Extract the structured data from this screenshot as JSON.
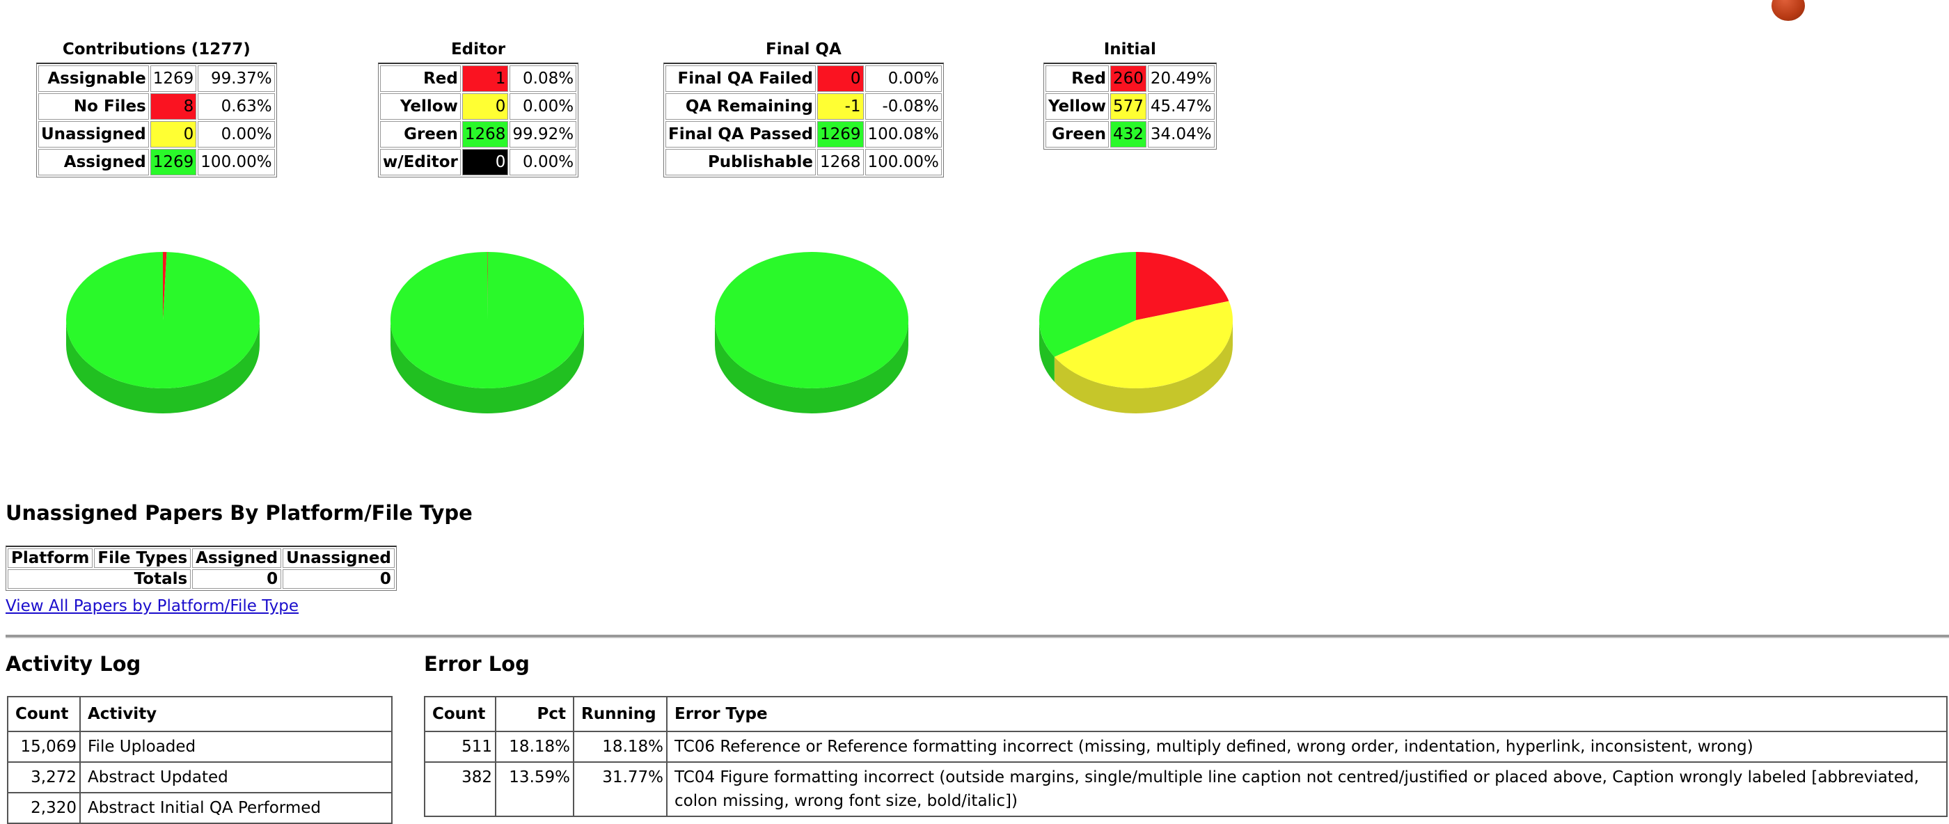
{
  "colors": {
    "red": "#fa1321",
    "yellow": "#ffff33",
    "green": "#2af92a",
    "black": "#000000"
  },
  "contributions": {
    "title": "Contributions (1277)",
    "rows": [
      {
        "label": "Assignable",
        "value": "1269",
        "pct": "99.37%",
        "color": ""
      },
      {
        "label": "No Files",
        "value": "8",
        "pct": "0.63%",
        "color": "red"
      },
      {
        "label": "Unassigned",
        "value": "0",
        "pct": "0.00%",
        "color": "yellow"
      },
      {
        "label": "Assigned",
        "value": "1269",
        "pct": "100.00%",
        "color": "green"
      }
    ]
  },
  "editor": {
    "title": "Editor",
    "rows": [
      {
        "label": "Red",
        "value": "1",
        "pct": "0.08%",
        "color": "red"
      },
      {
        "label": "Yellow",
        "value": "0",
        "pct": "0.00%",
        "color": "yellow"
      },
      {
        "label": "Green",
        "value": "1268",
        "pct": "99.92%",
        "color": "green"
      },
      {
        "label": "w/Editor",
        "value": "0",
        "pct": "0.00%",
        "color": "black"
      }
    ]
  },
  "final_qa": {
    "title": "Final QA",
    "rows": [
      {
        "label": "Final QA Failed",
        "value": "0",
        "pct": "0.00%",
        "color": "red"
      },
      {
        "label": "QA Remaining",
        "value": "-1",
        "pct": "-0.08%",
        "color": "yellow"
      },
      {
        "label": "Final QA Passed",
        "value": "1269",
        "pct": "100.08%",
        "color": "green"
      },
      {
        "label": "Publishable",
        "value": "1268",
        "pct": "100.00%",
        "color": ""
      }
    ]
  },
  "initial": {
    "title": "Initial",
    "rows": [
      {
        "label": "Red",
        "value": "260",
        "pct": "20.49%",
        "color": "red"
      },
      {
        "label": "Yellow",
        "value": "577",
        "pct": "45.47%",
        "color": "yellow"
      },
      {
        "label": "Green",
        "value": "432",
        "pct": "34.04%",
        "color": "green"
      }
    ]
  },
  "chart_data": [
    {
      "type": "pie",
      "name": "Contributions",
      "slices": [
        {
          "label": "No Files",
          "value": 8,
          "color": "red"
        },
        {
          "label": "Assigned",
          "value": 1269,
          "color": "green"
        }
      ]
    },
    {
      "type": "pie",
      "name": "Editor",
      "slices": [
        {
          "label": "Red",
          "value": 1,
          "color": "red"
        },
        {
          "label": "Yellow",
          "value": 0,
          "color": "yellow"
        },
        {
          "label": "Green",
          "value": 1268,
          "color": "green"
        }
      ]
    },
    {
      "type": "pie",
      "name": "Final QA",
      "slices": [
        {
          "label": "Final QA Failed",
          "value": 0,
          "color": "red"
        },
        {
          "label": "Final QA Passed",
          "value": 1269,
          "color": "green"
        }
      ]
    },
    {
      "type": "pie",
      "name": "Initial",
      "slices": [
        {
          "label": "Red",
          "value": 260,
          "color": "red"
        },
        {
          "label": "Yellow",
          "value": 577,
          "color": "yellow"
        },
        {
          "label": "Green",
          "value": 432,
          "color": "green"
        }
      ]
    }
  ],
  "unassigned": {
    "heading": "Unassigned Papers By Platform/File Type",
    "headers": [
      "Platform",
      "File Types",
      "Assigned",
      "Unassigned"
    ],
    "totals_label": "Totals",
    "totals_assigned": "0",
    "totals_unassigned": "0",
    "link": "View All Papers by Platform/File Type"
  },
  "activity_log": {
    "heading": "Activity Log",
    "headers": [
      "Count",
      "Activity"
    ],
    "rows": [
      [
        "15,069",
        "File Uploaded"
      ],
      [
        "3,272",
        "Abstract Updated"
      ],
      [
        "2,320",
        "Abstract Initial QA Performed"
      ]
    ]
  },
  "error_log": {
    "heading": "Error Log",
    "headers": [
      "Count",
      "Pct",
      "Running",
      "Error Type"
    ],
    "rows": [
      [
        "511",
        "18.18%",
        "18.18%",
        "TC06 Reference or Reference formatting incorrect (missing, multiply defined, wrong order, indentation, hyperlink, inconsistent, wrong)"
      ],
      [
        "382",
        "13.59%",
        "31.77%",
        "TC04 Figure formatting incorrect (outside margins, single/multiple line caption not centred/justified or placed above, Caption wrongly labeled [abbreviated, colon missing, wrong font size, bold/italic])"
      ]
    ]
  }
}
